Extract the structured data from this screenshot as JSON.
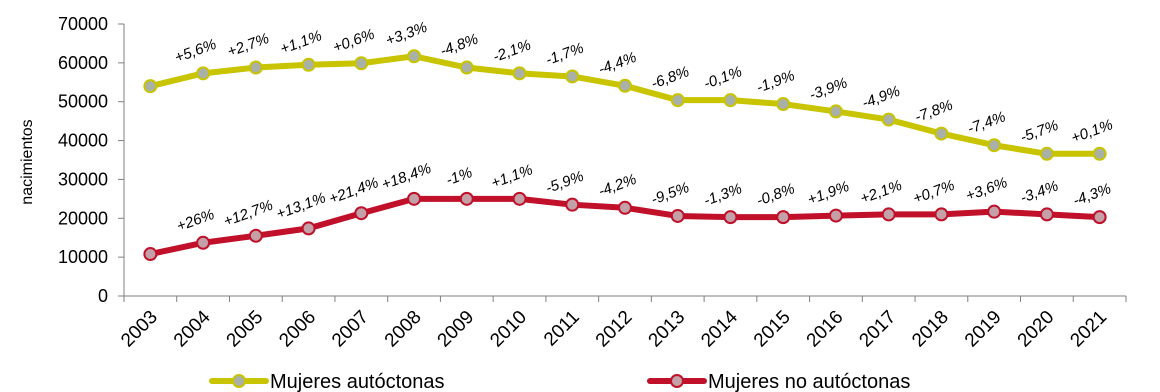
{
  "chart_data": {
    "type": "line",
    "title": "",
    "xlabel": "",
    "ylabel": "nacimientos",
    "ylim": [
      0,
      70000
    ],
    "yticks": [
      0,
      10000,
      20000,
      30000,
      40000,
      50000,
      60000,
      70000
    ],
    "grid": false,
    "legend_position": "bottom",
    "categories": [
      "2003",
      "2004",
      "2005",
      "2006",
      "2007",
      "2008",
      "2009",
      "2010",
      "2011",
      "2012",
      "2013",
      "2014",
      "2015",
      "2016",
      "2017",
      "2018",
      "2019",
      "2020",
      "2021"
    ],
    "series": [
      {
        "name": "Mujeres autóctonas",
        "color": "#c8c400",
        "marker_color": "#a8b0a8",
        "values": [
          54000,
          57300,
          58800,
          59500,
          59900,
          61700,
          58800,
          57300,
          56500,
          54100,
          50400,
          50400,
          49400,
          47500,
          45400,
          41800,
          38800,
          36600,
          36600
        ],
        "labels": [
          "",
          "+5,6%",
          "+2,7%",
          "+1,1%",
          "+0,6%",
          "+3,3%",
          "-4,8%",
          "-2,1%",
          "-1,7%",
          "-4,4%",
          "-6,8%",
          "-0,1%",
          "-1,9%",
          "-3,9%",
          "-4,9%",
          "-7,8%",
          "-7,4%",
          "-5,7%",
          "+0,1%"
        ]
      },
      {
        "name": "Mujeres no autóctonas",
        "color": "#c0102a",
        "marker_color": "#c4a0a8",
        "values": [
          10800,
          13700,
          15500,
          17400,
          21300,
          25000,
          25000,
          25000,
          23500,
          22700,
          20600,
          20300,
          20300,
          20700,
          21000,
          21000,
          21700,
          21000,
          20300
        ],
        "labels": [
          "",
          "+26%",
          "+12,7%",
          "+13,1%",
          "+21,4%",
          "+18,4%",
          "-1%",
          "+1,1%",
          "-5,9%",
          "-4,2%",
          "-9,5%",
          "-1,3%",
          "-0,8%",
          "+1,9%",
          "+2,1%",
          "+0,7%",
          "+3,6%",
          "-3,4%",
          "-4,3%"
        ]
      }
    ]
  }
}
